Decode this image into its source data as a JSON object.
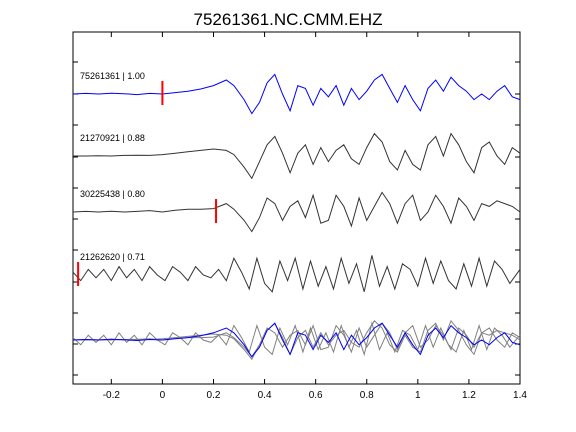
{
  "chart_data": {
    "type": "line",
    "title": "75261361.NC.CMM.EHZ",
    "xlabel": "",
    "ylabel": "",
    "xlim": [
      -0.35,
      1.4
    ],
    "x_ticks": [
      -0.2,
      0,
      0.2,
      0.4,
      0.6,
      0.8,
      1,
      1.2,
      1.4
    ],
    "x_tick_labels": [
      "-0.2",
      "0",
      "0.2",
      "0.4",
      "0.6",
      "0.8",
      "1",
      "1.2",
      "1.4"
    ],
    "grid": false,
    "colors": {
      "primary_trace": "#0000ff",
      "other_traces": "#333333",
      "stack_gray": "#808080",
      "pick_marker": "#ff0000"
    },
    "traces": [
      {
        "label": "75261361 | 1.00",
        "event_id": "75261361",
        "correlation": 1.0,
        "color": "#0000ff",
        "pick_time": 0.0,
        "x": [
          -0.35,
          -0.3,
          -0.25,
          -0.2,
          -0.15,
          -0.1,
          -0.05,
          0,
          0.05,
          0.1,
          0.15,
          0.2,
          0.25,
          0.28,
          0.32,
          0.35,
          0.38,
          0.41,
          0.44,
          0.47,
          0.5,
          0.53,
          0.56,
          0.59,
          0.62,
          0.65,
          0.68,
          0.71,
          0.74,
          0.77,
          0.8,
          0.83,
          0.86,
          0.89,
          0.92,
          0.95,
          0.98,
          1.01,
          1.04,
          1.07,
          1.1,
          1.13,
          1.16,
          1.19,
          1.22,
          1.25,
          1.28,
          1.31,
          1.34,
          1.37,
          1.4
        ],
        "y": [
          0,
          0.02,
          0,
          0.03,
          0.01,
          -0.02,
          0.02,
          0,
          0.05,
          0.1,
          0.18,
          0.3,
          0.5,
          0.3,
          -0.2,
          -0.7,
          -0.3,
          0.4,
          0.7,
          0.0,
          -0.6,
          0.3,
          0.2,
          -0.4,
          0.2,
          -0.1,
          0.3,
          -0.4,
          0.2,
          -0.2,
          0.1,
          0.5,
          0.7,
          0.2,
          -0.3,
          0.3,
          -0.2,
          -0.6,
          0.2,
          0.5,
          0.1,
          0.6,
          0.3,
          0.1,
          -0.2,
          0.0,
          -0.2,
          0.1,
          0.3,
          -0.1,
          -0.2
        ]
      },
      {
        "label": "21270921 | 0.88",
        "event_id": "21270921",
        "correlation": 0.88,
        "color": "#333333",
        "x": [
          -0.35,
          -0.3,
          -0.25,
          -0.2,
          -0.15,
          -0.1,
          -0.05,
          0,
          0.05,
          0.1,
          0.15,
          0.2,
          0.25,
          0.28,
          0.32,
          0.35,
          0.38,
          0.41,
          0.44,
          0.47,
          0.5,
          0.53,
          0.56,
          0.59,
          0.62,
          0.65,
          0.68,
          0.71,
          0.74,
          0.77,
          0.8,
          0.83,
          0.86,
          0.89,
          0.92,
          0.95,
          0.98,
          1.01,
          1.04,
          1.07,
          1.1,
          1.13,
          1.16,
          1.19,
          1.22,
          1.25,
          1.28,
          1.31,
          1.34,
          1.37,
          1.4
        ],
        "y": [
          0,
          0,
          0.01,
          0,
          0.02,
          0.03,
          0.02,
          0.05,
          0.1,
          0.15,
          0.2,
          0.25,
          0.2,
          0.05,
          -0.4,
          -0.8,
          -0.2,
          0.4,
          0.7,
          0.1,
          -0.6,
          0.1,
          0.4,
          -0.3,
          0.3,
          -0.2,
          0.2,
          0.4,
          -0.1,
          -0.3,
          0.3,
          0.8,
          0.5,
          -0.2,
          -0.5,
          0.2,
          -0.3,
          -0.5,
          0.4,
          0.7,
          0.0,
          0.8,
          0.4,
          -0.2,
          -0.6,
          0.3,
          0.5,
          0.0,
          -0.3,
          0.3,
          0.1
        ]
      },
      {
        "label": "30225438 | 0.80",
        "event_id": "30225438",
        "correlation": 0.8,
        "color": "#333333",
        "pick_time": 0.21,
        "x": [
          -0.35,
          -0.3,
          -0.25,
          -0.2,
          -0.15,
          -0.1,
          -0.05,
          0,
          0.05,
          0.1,
          0.15,
          0.2,
          0.25,
          0.28,
          0.32,
          0.35,
          0.38,
          0.41,
          0.44,
          0.47,
          0.5,
          0.53,
          0.56,
          0.59,
          0.62,
          0.65,
          0.68,
          0.71,
          0.74,
          0.77,
          0.8,
          0.83,
          0.86,
          0.89,
          0.92,
          0.95,
          0.98,
          1.01,
          1.04,
          1.07,
          1.1,
          1.13,
          1.16,
          1.19,
          1.22,
          1.25,
          1.28,
          1.31,
          1.34,
          1.37,
          1.4
        ],
        "y": [
          0,
          0.02,
          0,
          0.03,
          0,
          0.02,
          0.05,
          0.0,
          0.06,
          0.1,
          0.1,
          0.12,
          0.3,
          0.1,
          -0.3,
          -0.7,
          -0.2,
          0.5,
          0.3,
          -0.3,
          0.2,
          0.4,
          -0.2,
          0.6,
          -0.4,
          -0.3,
          0.6,
          0.2,
          -0.5,
          0.5,
          -0.3,
          0.2,
          0.7,
          0.3,
          -0.4,
          0.3,
          0.6,
          -0.3,
          0.0,
          0.6,
          0.2,
          -0.4,
          0.5,
          0.2,
          -0.3,
          0.3,
          0.2,
          0.4,
          0.3,
          0.2,
          0.0
        ]
      },
      {
        "label": "21262620 | 0.71",
        "event_id": "21262620",
        "correlation": 0.71,
        "color": "#333333",
        "pick_time": -0.33,
        "x": [
          -0.35,
          -0.32,
          -0.29,
          -0.26,
          -0.23,
          -0.2,
          -0.17,
          -0.14,
          -0.11,
          -0.08,
          -0.05,
          -0.02,
          0.01,
          0.04,
          0.07,
          0.1,
          0.13,
          0.16,
          0.19,
          0.22,
          0.25,
          0.28,
          0.31,
          0.34,
          0.37,
          0.4,
          0.43,
          0.46,
          0.49,
          0.52,
          0.55,
          0.58,
          0.61,
          0.64,
          0.67,
          0.7,
          0.73,
          0.76,
          0.79,
          0.82,
          0.85,
          0.88,
          0.91,
          0.94,
          0.97,
          1.0,
          1.03,
          1.06,
          1.09,
          1.12,
          1.15,
          1.18,
          1.21,
          1.24,
          1.27,
          1.3,
          1.33,
          1.36,
          1.4
        ],
        "y": [
          0.1,
          -0.2,
          0.2,
          -0.1,
          0.2,
          -0.2,
          0.3,
          -0.1,
          0.2,
          -0.2,
          0.3,
          0.0,
          -0.2,
          0.3,
          0.1,
          -0.2,
          0.3,
          0.0,
          -0.1,
          0.2,
          -0.2,
          0.6,
          0.1,
          -0.5,
          0.6,
          -0.3,
          -0.6,
          0.5,
          -0.2,
          0.6,
          -0.5,
          0.5,
          -0.4,
          0.3,
          -0.5,
          0.6,
          -0.3,
          0.4,
          -0.6,
          0.7,
          -0.4,
          0.3,
          -0.5,
          0.4,
          0.2,
          -0.4,
          0.6,
          -0.3,
          0.5,
          -0.2,
          -0.5,
          0.4,
          -0.4,
          0.6,
          -0.4,
          0.5,
          0.2,
          -0.3,
          0.2
        ]
      }
    ],
    "stack": {
      "description_visible": false,
      "members": [
        {
          "color": "#0000ff",
          "ref": "75261361"
        },
        {
          "color": "#808080",
          "ref": "21270921"
        },
        {
          "color": "#808080",
          "ref": "30225438"
        },
        {
          "color": "#808080",
          "ref": "21262620"
        }
      ]
    }
  }
}
